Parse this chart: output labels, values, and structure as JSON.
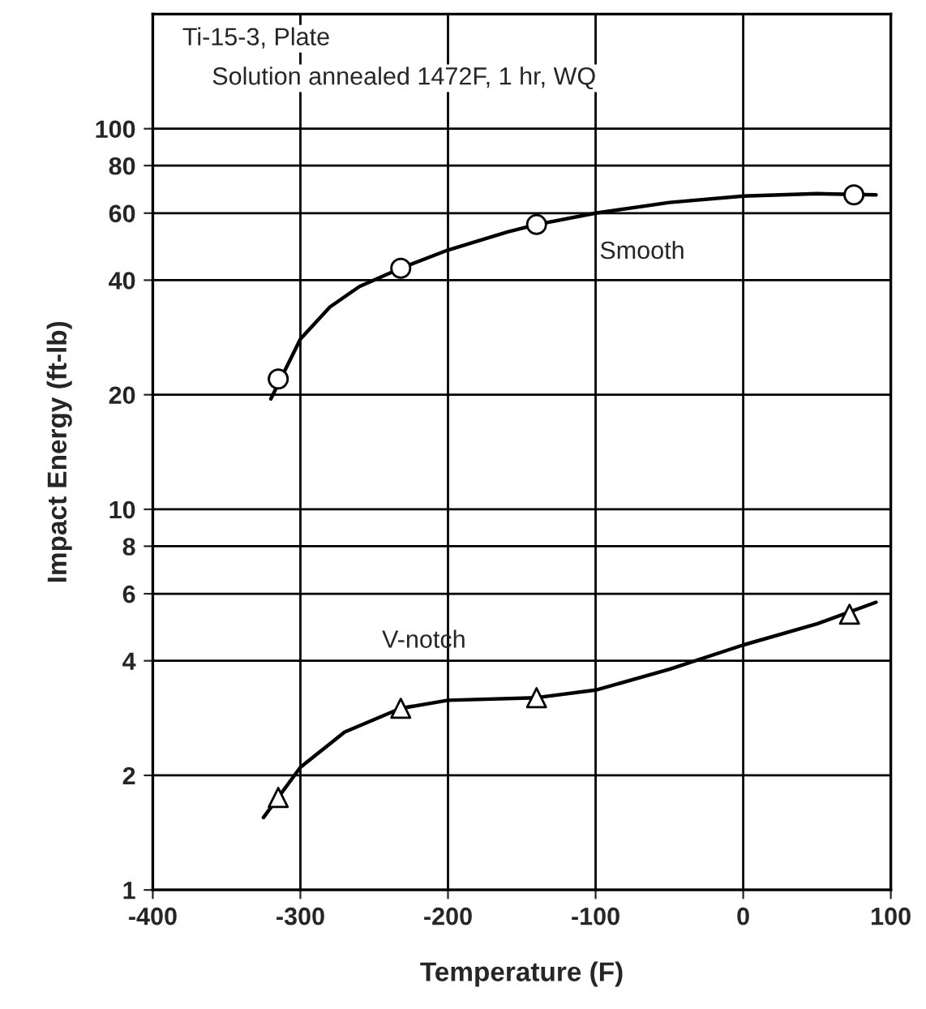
{
  "chart_data": {
    "type": "line",
    "xlabel": "Temperature (F)",
    "ylabel": "Impact Energy (ft-lb)",
    "annotations": [
      "Ti-15-3, Plate",
      "Solution annealed 1472F, 1 hr, WQ"
    ],
    "series": [
      {
        "name": "Smooth",
        "color": "#000000",
        "marker": "none",
        "x": [
          -320,
          -300,
          -280,
          -260,
          -232,
          -200,
          -160,
          -140,
          -100,
          -50,
          0,
          50,
          90
        ],
        "values": [
          19.5,
          28,
          34,
          38.5,
          43,
          48,
          53.5,
          56,
          60,
          64,
          66.5,
          67.5,
          67
        ]
      },
      {
        "type": "scatter",
        "color": "#000000",
        "marker": "circle",
        "x": [
          -315,
          -232,
          -140,
          75
        ],
        "values": [
          22,
          43,
          56,
          67
        ]
      },
      {
        "name": "V-notch",
        "color": "#000000",
        "marker": "none",
        "x": [
          -325,
          -300,
          -270,
          -232,
          -200,
          -140,
          -100,
          -50,
          0,
          50,
          90
        ],
        "values": [
          1.55,
          2.1,
          2.6,
          3.0,
          3.15,
          3.2,
          3.35,
          3.8,
          4.4,
          5.0,
          5.7
        ]
      },
      {
        "type": "scatter",
        "color": "#000000",
        "marker": "triangle",
        "x": [
          -315,
          -232,
          -140,
          72
        ],
        "values": [
          1.75,
          3.0,
          3.2,
          5.3
        ]
      }
    ],
    "log": "y",
    "xlim": [
      -400,
      100
    ],
    "xticks": [
      -400,
      -300,
      -200,
      -100,
      0,
      100
    ],
    "ylim": [
      1,
      200
    ],
    "yticks": [
      1,
      2,
      4,
      6,
      8,
      10,
      20,
      40,
      60,
      80,
      100
    ],
    "grid": true
  }
}
